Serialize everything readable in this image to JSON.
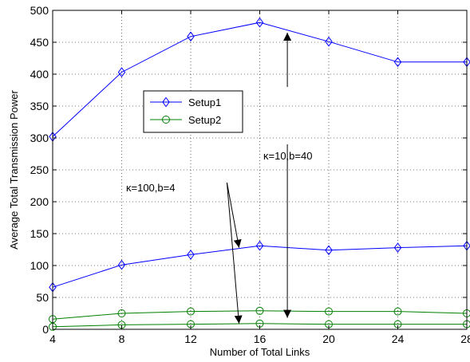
{
  "chart_data": {
    "type": "line",
    "title": "",
    "xlabel": "Number of Total Links",
    "ylabel": "Average Total Transmission Power",
    "xlim": [
      4,
      28
    ],
    "ylim": [
      0,
      500
    ],
    "xticks": [
      4,
      8,
      12,
      16,
      20,
      24,
      28
    ],
    "yticks": [
      0,
      50,
      100,
      150,
      200,
      250,
      300,
      350,
      400,
      450,
      500
    ],
    "grid": true,
    "legend_position": "upper-left-center",
    "x": [
      4,
      8,
      12,
      16,
      20,
      24,
      28
    ],
    "series": [
      {
        "name": "Setup1",
        "marker": "diamond",
        "color": "#0000ff",
        "values": [
          302,
          403,
          459,
          481,
          451,
          419,
          419
        ]
      },
      {
        "name": "Setup2",
        "marker": "circle",
        "color": "#008000",
        "values": [
          16,
          25,
          28,
          29,
          28,
          28,
          25
        ]
      },
      {
        "name": "",
        "legend": false,
        "marker": "diamond",
        "color": "#0000ff",
        "values": [
          66,
          101,
          117,
          131,
          124,
          128,
          131
        ]
      },
      {
        "name": "",
        "legend": false,
        "marker": "circle",
        "color": "#008000",
        "values": [
          4,
          7,
          8,
          9,
          8,
          8,
          8
        ]
      }
    ],
    "annotations": [
      {
        "text": "κ=10,b=40",
        "arrows": [
          {
            "from_x": 17.6,
            "from_y": 380,
            "to_x": 17.6,
            "to_y": 465
          },
          {
            "from_x": 17.6,
            "from_y": 290,
            "to_x": 17.6,
            "to_y": 18
          }
        ]
      },
      {
        "text": "κ=100,b=4",
        "arrows": [
          {
            "from_x": 14.1,
            "from_y": 230,
            "to_x": 14.8,
            "to_y": 128
          },
          {
            "from_x": 14.1,
            "from_y": 230,
            "to_x": 14.8,
            "to_y": 9
          }
        ]
      }
    ]
  }
}
